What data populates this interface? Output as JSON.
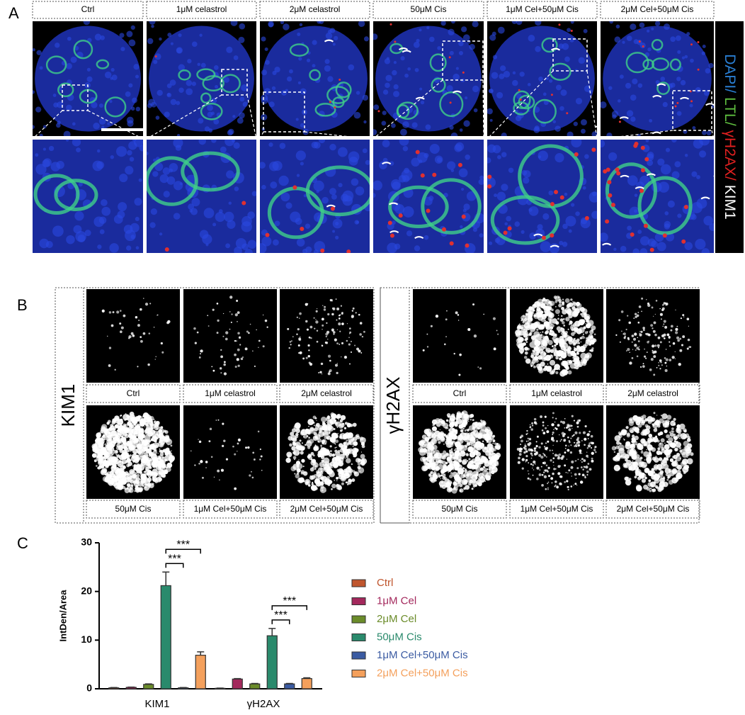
{
  "panel_labels": [
    "A",
    "B",
    "C"
  ],
  "panel_a": {
    "headers": [
      "Ctrl",
      "1μM celastrol",
      "2μM celastrol",
      "50μM Cis",
      "1μM Cel+50μM Cis",
      "2μM Cel+50μM Cis"
    ],
    "stain_legend": [
      {
        "text": "DAPI/",
        "color": "#2a7fd4"
      },
      {
        "text": "LTL/",
        "color": "#5fbf3f"
      },
      {
        "text": "γH2AX/",
        "color": "#e02020"
      },
      {
        "text": "KIM1",
        "color": "#ffffff"
      }
    ]
  },
  "panel_b": {
    "groups": [
      {
        "title": "KIM1",
        "labels": [
          "Ctrl",
          "1μM celastrol",
          "2μM celastrol",
          "50μM Cis",
          "1μM Cel+50μM Cis",
          "2μM Cel+50μM Cis"
        ]
      },
      {
        "title": "γH2AX",
        "labels": [
          "Ctrl",
          "1μM celastrol",
          "2μM celastrol",
          "50μM Cis",
          "1μM Cel+50μM Cis",
          "2μM Cel+50μM Cis"
        ]
      }
    ]
  },
  "chart_data": {
    "type": "bar",
    "y_label": "IntDen/Area",
    "categories": [
      "KIM1",
      "γH2AX"
    ],
    "ylim": [
      0,
      30
    ],
    "yticks": [
      0,
      10,
      20,
      30
    ],
    "series": [
      {
        "name": "Ctrl",
        "color": "#c0562e",
        "values": [
          0.2,
          0.1
        ],
        "errors": [
          0.05,
          0.05
        ]
      },
      {
        "name": "1μM Cel",
        "color": "#a3285c",
        "values": [
          0.3,
          2.0
        ],
        "errors": [
          0.05,
          0.1
        ]
      },
      {
        "name": "2μM Cel",
        "color": "#6b8c2a",
        "values": [
          0.9,
          1.0
        ],
        "errors": [
          0.1,
          0.1
        ]
      },
      {
        "name": "50μM Cis",
        "color": "#2a8a6c",
        "values": [
          21.2,
          10.9
        ],
        "errors": [
          2.8,
          1.5
        ]
      },
      {
        "name": "1μM Cel+50μM Cis",
        "color": "#3b5ba2",
        "values": [
          0.2,
          1.0
        ],
        "errors": [
          0.05,
          0.1
        ]
      },
      {
        "name": "2μM Cel+50μM Cis",
        "color": "#f4a05c",
        "values": [
          6.9,
          2.1
        ],
        "errors": [
          0.7,
          0.15
        ]
      }
    ],
    "significance": [
      {
        "label": "***",
        "category": 0,
        "series": [
          3,
          4
        ]
      },
      {
        "label": "***",
        "category": 0,
        "series": [
          3,
          5
        ]
      },
      {
        "label": "***",
        "category": 1,
        "series": [
          3,
          4
        ]
      },
      {
        "label": "***",
        "category": 1,
        "series": [
          3,
          5
        ]
      }
    ]
  }
}
